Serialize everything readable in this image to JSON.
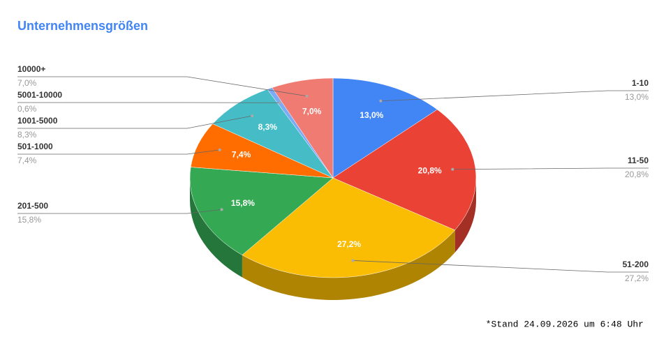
{
  "chart_data": {
    "type": "pie",
    "title": "Unternehmensgrößen",
    "categories": [
      "1-10",
      "11-50",
      "51-200",
      "201-500",
      "501-1000",
      "1001-5000",
      "5001-10000",
      "10000+"
    ],
    "values": [
      13.0,
      20.8,
      27.2,
      15.8,
      7.4,
      8.3,
      0.6,
      7.0
    ],
    "value_labels": [
      "13,0%",
      "20,8%",
      "27,2%",
      "15,8%",
      "7,4%",
      "8,3%",
      "0,6%",
      "7,0%"
    ],
    "colors": [
      "#4285f4",
      "#ea4335",
      "#fbbc04",
      "#34a853",
      "#ff6d01",
      "#46bdc6",
      "#7baaf7",
      "#f07b72"
    ],
    "footnote": "*Stand 24.09.2026 um 6:48 Uhr"
  }
}
